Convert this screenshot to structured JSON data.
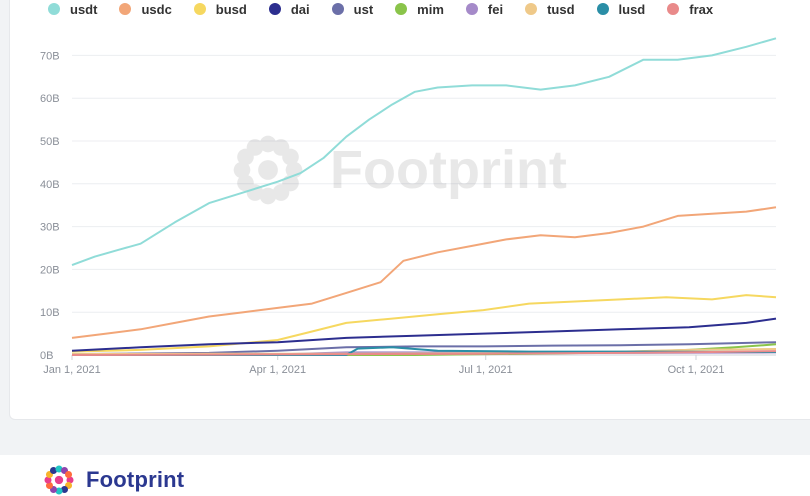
{
  "chart_data": {
    "type": "line",
    "xlabel": "",
    "ylabel": "",
    "ylim": [
      0,
      75
    ],
    "y_ticks": [
      {
        "value": 0,
        "label": "0B"
      },
      {
        "value": 10,
        "label": "10B"
      },
      {
        "value": 20,
        "label": "20B"
      },
      {
        "value": 30,
        "label": "30B"
      },
      {
        "value": 40,
        "label": "40B"
      },
      {
        "value": 50,
        "label": "50B"
      },
      {
        "value": 60,
        "label": "60B"
      },
      {
        "value": 70,
        "label": "70B"
      }
    ],
    "x_ticks": [
      {
        "value": 0,
        "label": "Jan 1, 2021"
      },
      {
        "value": 90,
        "label": "Apr 1, 2021"
      },
      {
        "value": 181,
        "label": "Jul 1, 2021"
      },
      {
        "value": 273,
        "label": "Oct 1, 2021"
      }
    ],
    "xlim": [
      0,
      308
    ],
    "grid": true,
    "legend_position": "top-left",
    "series": [
      {
        "name": "usdt",
        "color": "#90dcd8",
        "points": [
          [
            0,
            21
          ],
          [
            10,
            23
          ],
          [
            20,
            24.5
          ],
          [
            30,
            26
          ],
          [
            45,
            31
          ],
          [
            60,
            35.5
          ],
          [
            75,
            38
          ],
          [
            90,
            40.5
          ],
          [
            100,
            42.5
          ],
          [
            110,
            46
          ],
          [
            120,
            51
          ],
          [
            130,
            55
          ],
          [
            140,
            58.5
          ],
          [
            150,
            61.5
          ],
          [
            160,
            62.5
          ],
          [
            175,
            63
          ],
          [
            190,
            63
          ],
          [
            205,
            62
          ],
          [
            220,
            63
          ],
          [
            235,
            65
          ],
          [
            250,
            69
          ],
          [
            265,
            69
          ],
          [
            280,
            70
          ],
          [
            295,
            72
          ],
          [
            308,
            74
          ]
        ]
      },
      {
        "name": "usdc",
        "color": "#f2a678",
        "points": [
          [
            0,
            4
          ],
          [
            15,
            5
          ],
          [
            30,
            6
          ],
          [
            45,
            7.5
          ],
          [
            60,
            9
          ],
          [
            75,
            10
          ],
          [
            90,
            11
          ],
          [
            105,
            12
          ],
          [
            120,
            14.5
          ],
          [
            135,
            17
          ],
          [
            145,
            22
          ],
          [
            160,
            24
          ],
          [
            175,
            25.5
          ],
          [
            190,
            27
          ],
          [
            205,
            28
          ],
          [
            220,
            27.5
          ],
          [
            235,
            28.5
          ],
          [
            250,
            30
          ],
          [
            265,
            32.5
          ],
          [
            280,
            33
          ],
          [
            295,
            33.5
          ],
          [
            308,
            34.5
          ]
        ]
      },
      {
        "name": "busd",
        "color": "#f6d860",
        "points": [
          [
            0,
            0.8
          ],
          [
            30,
            1.2
          ],
          [
            60,
            2
          ],
          [
            90,
            3.5
          ],
          [
            105,
            5.5
          ],
          [
            120,
            7.5
          ],
          [
            140,
            8.5
          ],
          [
            160,
            9.5
          ],
          [
            180,
            10.5
          ],
          [
            200,
            12
          ],
          [
            220,
            12.5
          ],
          [
            240,
            13
          ],
          [
            260,
            13.5
          ],
          [
            280,
            13
          ],
          [
            295,
            14
          ],
          [
            308,
            13.5
          ]
        ]
      },
      {
        "name": "dai",
        "color": "#2c2e8f",
        "points": [
          [
            0,
            1
          ],
          [
            30,
            1.8
          ],
          [
            60,
            2.5
          ],
          [
            90,
            3
          ],
          [
            120,
            4
          ],
          [
            150,
            4.5
          ],
          [
            180,
            5
          ],
          [
            210,
            5.5
          ],
          [
            240,
            6
          ],
          [
            270,
            6.5
          ],
          [
            295,
            7.5
          ],
          [
            308,
            8.5
          ]
        ]
      },
      {
        "name": "ust",
        "color": "#6b6fa8",
        "points": [
          [
            0,
            0.2
          ],
          [
            60,
            0.5
          ],
          [
            90,
            1
          ],
          [
            120,
            1.8
          ],
          [
            150,
            2
          ],
          [
            180,
            2
          ],
          [
            210,
            2.2
          ],
          [
            240,
            2.3
          ],
          [
            270,
            2.5
          ],
          [
            308,
            3
          ]
        ]
      },
      {
        "name": "mim",
        "color": "#8ac44a",
        "points": [
          [
            0,
            0
          ],
          [
            150,
            0
          ],
          [
            200,
            0.3
          ],
          [
            240,
            0.6
          ],
          [
            270,
            1.2
          ],
          [
            290,
            1.8
          ],
          [
            308,
            2.5
          ]
        ]
      },
      {
        "name": "fei",
        "color": "#a58ac9",
        "points": [
          [
            0,
            0
          ],
          [
            80,
            0
          ],
          [
            100,
            0.3
          ],
          [
            120,
            0.6
          ],
          [
            150,
            0.6
          ],
          [
            200,
            0.5
          ],
          [
            250,
            0.5
          ],
          [
            308,
            0.6
          ]
        ]
      },
      {
        "name": "tusd",
        "color": "#efc989",
        "points": [
          [
            0,
            0.2
          ],
          [
            60,
            0.3
          ],
          [
            120,
            0.3
          ],
          [
            180,
            0.4
          ],
          [
            240,
            0.8
          ],
          [
            270,
            1.2
          ],
          [
            308,
            1.4
          ]
        ]
      },
      {
        "name": "lusd",
        "color": "#2a8ea6",
        "points": [
          [
            0,
            0
          ],
          [
            120,
            0
          ],
          [
            125,
            1.5
          ],
          [
            140,
            1.8
          ],
          [
            160,
            1
          ],
          [
            200,
            0.8
          ],
          [
            250,
            0.8
          ],
          [
            308,
            0.7
          ]
        ]
      },
      {
        "name": "frax",
        "color": "#e98a8a",
        "points": [
          [
            0,
            0
          ],
          [
            60,
            0.1
          ],
          [
            120,
            0.2
          ],
          [
            180,
            0.3
          ],
          [
            240,
            0.5
          ],
          [
            280,
            0.7
          ],
          [
            308,
            0.9
          ]
        ]
      }
    ]
  },
  "legend": {
    "items": [
      {
        "label": "usdt",
        "color": "#90dcd8"
      },
      {
        "label": "usdc",
        "color": "#f2a678"
      },
      {
        "label": "busd",
        "color": "#f6d860"
      },
      {
        "label": "dai",
        "color": "#2c2e8f"
      },
      {
        "label": "ust",
        "color": "#6b6fa8"
      },
      {
        "label": "mim",
        "color": "#8ac44a"
      },
      {
        "label": "fei",
        "color": "#a58ac9"
      },
      {
        "label": "tusd",
        "color": "#efc989"
      },
      {
        "label": "lusd",
        "color": "#2a8ea6"
      },
      {
        "label": "frax",
        "color": "#e98a8a"
      }
    ]
  },
  "watermark": {
    "text": "Footprint"
  },
  "brand": {
    "name": "Footprint",
    "color": "#2b3890"
  }
}
